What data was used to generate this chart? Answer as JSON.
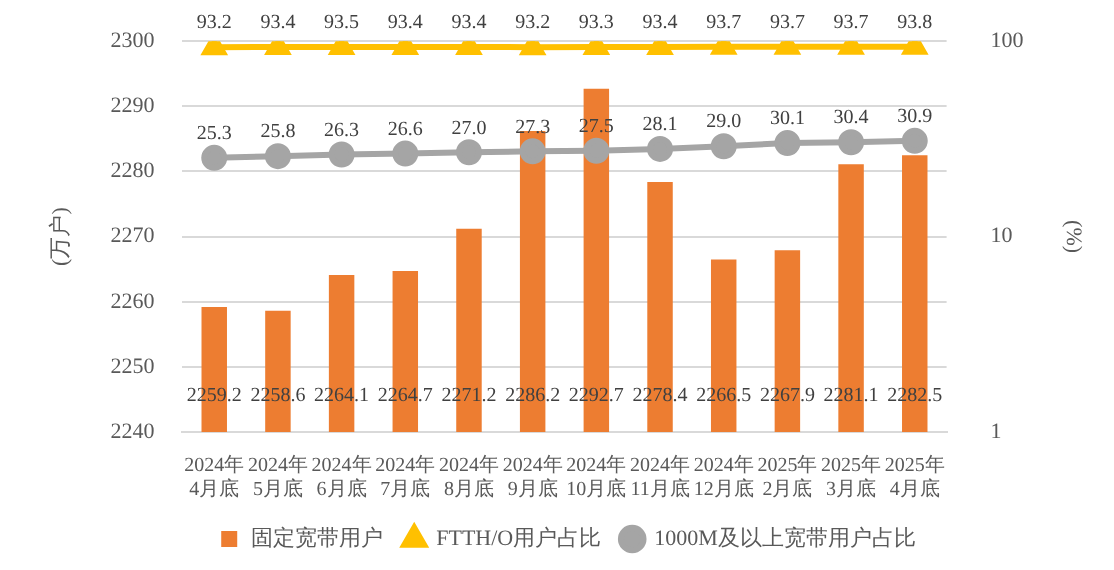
{
  "chart_data": {
    "type": "bar",
    "ylabel": "(万户)",
    "y2label": "(%)",
    "categories": [
      "2024年\n4月底",
      "2024年\n5月底",
      "2024年\n6月底",
      "2024年\n7月底",
      "2024年\n8月底",
      "2024年\n9月底",
      "2024年\n10月底",
      "2024年\n11月底",
      "2024年\n12月底",
      "2025年\n2月底",
      "2025年\n3月底",
      "2025年\n4月底"
    ],
    "series": [
      {
        "name": "固定宽带用户",
        "color": "#ed7d31",
        "values": [
          2259.2,
          2258.6,
          2264.1,
          2264.7,
          2271.2,
          2286.2,
          2292.7,
          2278.4,
          2266.5,
          2267.9,
          2281.1,
          2282.5
        ],
        "value_labels": [
          "2259.2",
          "2258.6",
          "2264.1",
          "2264.7",
          "2271.2",
          "2286.2",
          "2292.7",
          "2278.4",
          "2266.5",
          "2267.9",
          "2281.1",
          "2282.5"
        ]
      },
      {
        "name": "FTTH/O用户占比",
        "type": "line",
        "axis": "y2",
        "marker": "triangle",
        "color": "#ffc000",
        "values": [
          93.2,
          93.4,
          93.5,
          93.4,
          93.4,
          93.2,
          93.3,
          93.4,
          93.7,
          93.7,
          93.7,
          93.8
        ],
        "value_labels": [
          "93.2",
          "93.4",
          "93.5",
          "93.4",
          "93.4",
          "93.2",
          "93.3",
          "93.4",
          "93.7",
          "93.7",
          "93.7",
          "93.8"
        ]
      },
      {
        "name": "1000M及以上宽带用户占比",
        "type": "line",
        "axis": "y2",
        "marker": "circle",
        "color": "#a5a5a5",
        "values": [
          25.3,
          25.8,
          26.3,
          26.6,
          27.0,
          27.3,
          27.5,
          28.1,
          29.0,
          30.1,
          30.4,
          30.9
        ],
        "value_labels": [
          "25.3",
          "25.8",
          "26.3",
          "26.6",
          "27.0",
          "27.3",
          "27.5",
          "28.1",
          "29.0",
          "30.1",
          "30.4",
          "30.9"
        ]
      }
    ],
    "ylim": [
      2240,
      2300
    ],
    "yticks": [
      2240,
      2250,
      2260,
      2270,
      2280,
      2290,
      2300
    ],
    "y2lim": [
      1,
      100
    ],
    "y2ticks": [
      1,
      10,
      100
    ],
    "log": "y2",
    "grid": "y",
    "legend": "bottom",
    "line_style": "solid"
  }
}
